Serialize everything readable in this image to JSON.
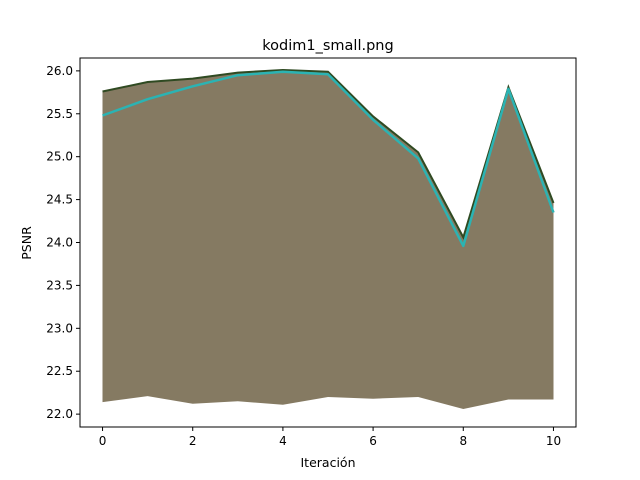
{
  "chart_data": {
    "type": "line",
    "title": "kodim1_small.png",
    "xlabel": "Iteración",
    "ylabel": "PSNR",
    "xlim": [
      -0.5,
      10.5
    ],
    "ylim": [
      21.85,
      26.15
    ],
    "xticks": [
      0,
      2,
      4,
      6,
      8,
      10
    ],
    "xtick_labels": [
      "0",
      "2",
      "4",
      "6",
      "8",
      "10"
    ],
    "yticks": [
      22.0,
      22.5,
      23.0,
      23.5,
      24.0,
      24.5,
      25.0,
      25.5,
      26.0
    ],
    "ytick_labels": [
      "22.0",
      "22.5",
      "23.0",
      "23.5",
      "24.0",
      "24.5",
      "25.0",
      "25.5",
      "26.0"
    ],
    "grid": false,
    "legend": "none",
    "x": [
      0,
      1,
      2,
      3,
      4,
      5,
      6,
      7,
      8,
      9,
      10
    ],
    "envelope_top": [
      25.76,
      25.87,
      25.91,
      25.98,
      26.01,
      25.99,
      25.47,
      25.05,
      24.06,
      25.81,
      24.46
    ],
    "envelope_bottom": [
      22.14,
      22.21,
      22.12,
      22.15,
      22.11,
      22.2,
      22.18,
      22.2,
      22.06,
      22.17,
      22.17
    ],
    "envelope_color": "#857a62",
    "series": [
      {
        "values": [
          25.48,
          25.67,
          25.82,
          25.95,
          25.99,
          25.96,
          25.43,
          24.98,
          23.96,
          25.79,
          24.35
        ],
        "color": "#2bb3b3"
      }
    ]
  }
}
